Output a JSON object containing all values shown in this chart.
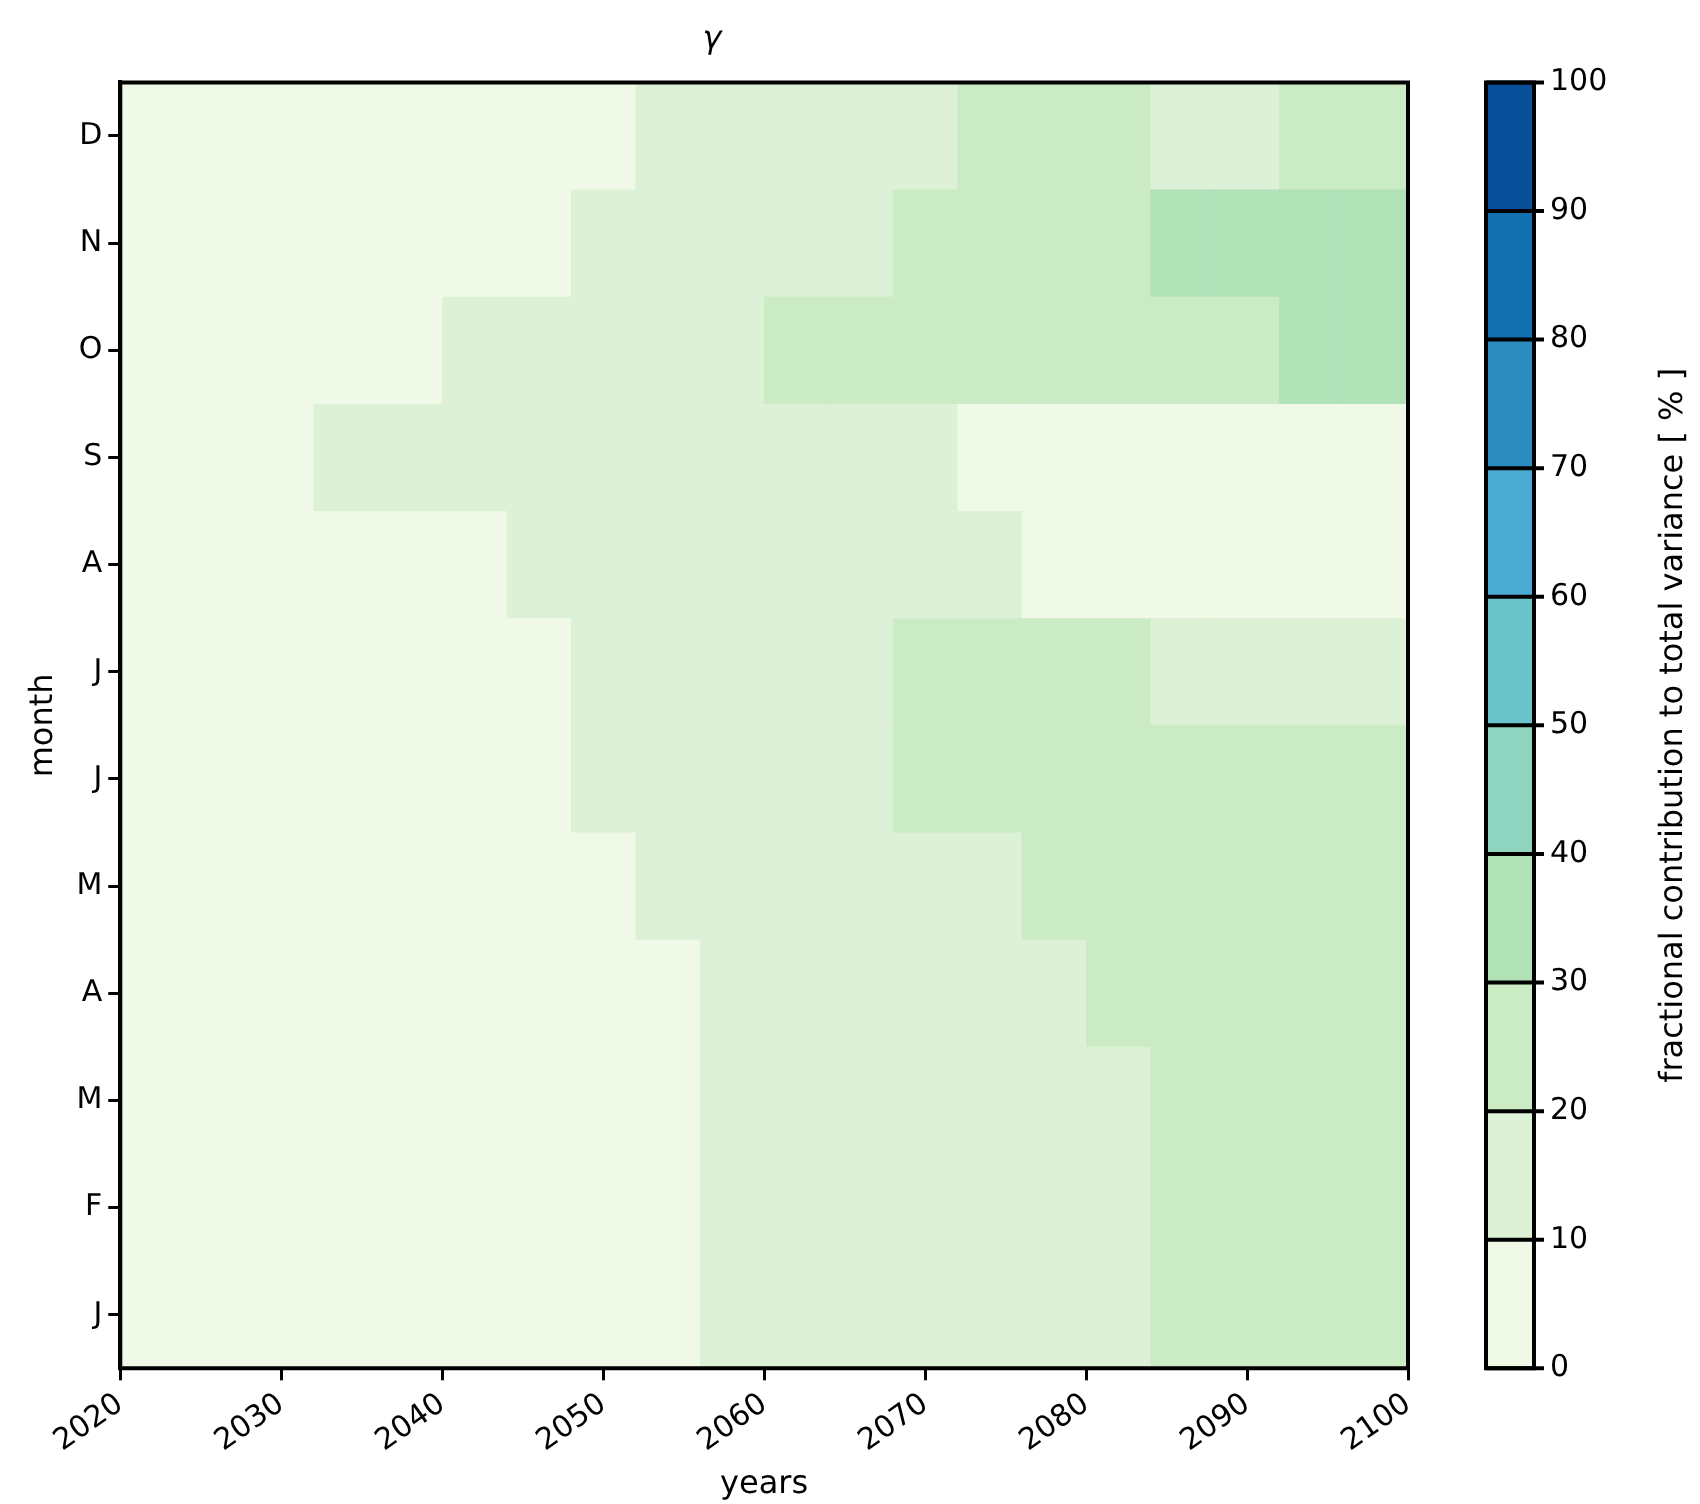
{
  "chart_data": {
    "type": "heatmap",
    "title": "γ",
    "xlabel": "years",
    "ylabel": "month",
    "clabel": "fractional contribution to total variance [ % ]",
    "x": [
      2022,
      2026,
      2030,
      2034,
      2038,
      2042,
      2046,
      2050,
      2054,
      2058,
      2062,
      2066,
      2070,
      2074,
      2078,
      2082,
      2086,
      2090,
      2094,
      2098
    ],
    "xlim": [
      2020,
      2100
    ],
    "xticks": [
      2020,
      2030,
      2040,
      2050,
      2060,
      2070,
      2080,
      2090,
      2100
    ],
    "y_categories": [
      "D",
      "N",
      "O",
      "S",
      "A",
      "J",
      "J",
      "M",
      "A",
      "M",
      "F",
      "J"
    ],
    "cells": [
      [
        5,
        5,
        5,
        5,
        5,
        5,
        5,
        5,
        15,
        15,
        15,
        15,
        15,
        25,
        25,
        25,
        15,
        15,
        25,
        25
      ],
      [
        5,
        5,
        5,
        5,
        5,
        5,
        5,
        15,
        15,
        15,
        15,
        15,
        25,
        25,
        25,
        25,
        35,
        35,
        35,
        35
      ],
      [
        5,
        5,
        5,
        5,
        5,
        15,
        15,
        15,
        15,
        15,
        25,
        25,
        25,
        25,
        25,
        25,
        25,
        25,
        35,
        35
      ],
      [
        5,
        5,
        5,
        15,
        15,
        15,
        15,
        15,
        15,
        15,
        15,
        15,
        15,
        5,
        5,
        5,
        5,
        5,
        5,
        5
      ],
      [
        5,
        5,
        5,
        5,
        5,
        5,
        15,
        15,
        15,
        15,
        15,
        15,
        15,
        15,
        5,
        5,
        5,
        5,
        5,
        5
      ],
      [
        5,
        5,
        5,
        5,
        5,
        5,
        5,
        15,
        15,
        15,
        15,
        15,
        25,
        25,
        25,
        25,
        15,
        15,
        15,
        15
      ],
      [
        5,
        5,
        5,
        5,
        5,
        5,
        5,
        15,
        15,
        15,
        15,
        15,
        25,
        25,
        25,
        25,
        25,
        25,
        25,
        25
      ],
      [
        5,
        5,
        5,
        5,
        5,
        5,
        5,
        5,
        15,
        15,
        15,
        15,
        15,
        15,
        25,
        25,
        25,
        25,
        25,
        25
      ],
      [
        5,
        5,
        5,
        5,
        5,
        5,
        5,
        5,
        5,
        15,
        15,
        15,
        15,
        15,
        15,
        25,
        25,
        25,
        25,
        25
      ],
      [
        5,
        5,
        5,
        5,
        5,
        5,
        5,
        5,
        5,
        15,
        15,
        15,
        15,
        15,
        15,
        15,
        25,
        25,
        25,
        25
      ],
      [
        5,
        5,
        5,
        5,
        5,
        5,
        5,
        5,
        5,
        15,
        15,
        15,
        15,
        15,
        15,
        15,
        25,
        25,
        25,
        25
      ],
      [
        5,
        5,
        5,
        5,
        5,
        5,
        5,
        5,
        5,
        15,
        15,
        15,
        15,
        15,
        15,
        15,
        25,
        25,
        25,
        25
      ]
    ],
    "clim": [
      0,
      100
    ],
    "cticks": [
      0,
      10,
      20,
      30,
      40,
      50,
      60,
      70,
      80,
      90,
      100
    ]
  }
}
